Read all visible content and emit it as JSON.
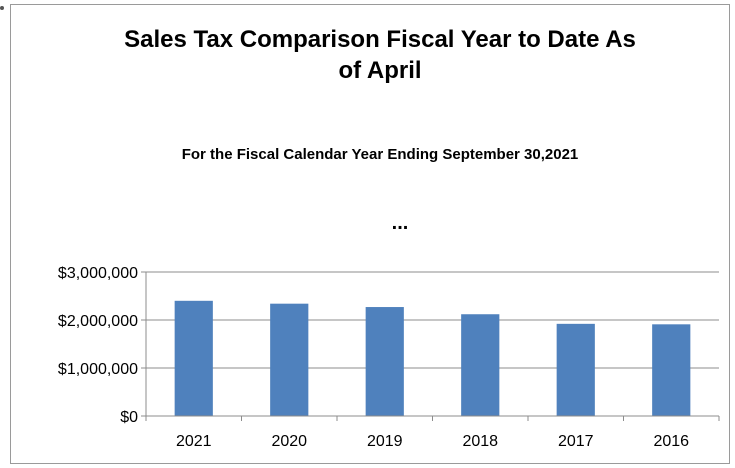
{
  "chart_data": {
    "type": "bar",
    "title": "Sales Tax Comparison Fiscal Year to Date As of April",
    "title_line1": "Sales Tax Comparison Fiscal Year to Date As",
    "title_line2": "of April",
    "subtitle": "For the Fiscal Calendar Year Ending September 30,2021",
    "annotation": "...",
    "categories": [
      "2021",
      "2020",
      "2019",
      "2018",
      "2017",
      "2016"
    ],
    "values": [
      2400000,
      2340000,
      2270000,
      2120000,
      1920000,
      1910000
    ],
    "ylim": [
      0,
      3000000
    ],
    "yticks": [
      0,
      1000000,
      2000000,
      3000000
    ],
    "ytick_labels": [
      "$0",
      "$1,000,000",
      "$2,000,000",
      "$3,000,000"
    ],
    "grid": true,
    "legend": "none",
    "bar_color": "#4f81bd"
  }
}
